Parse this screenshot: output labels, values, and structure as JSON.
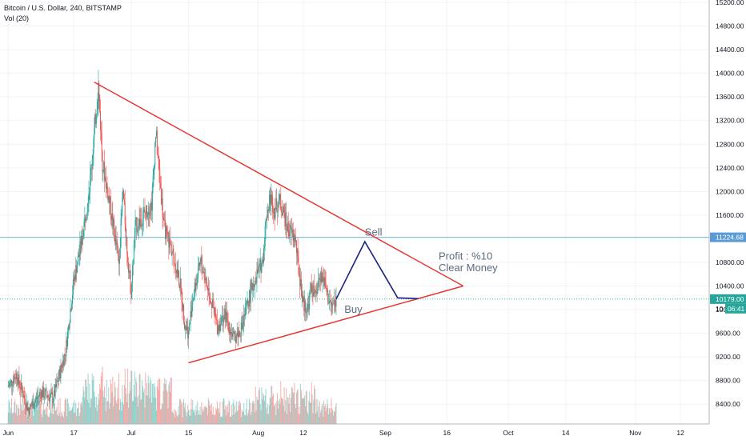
{
  "header": {
    "symbol_line": "Bitcoin / U.S. Dollar, 240, BITSTAMP",
    "volume_line": "Vol (20)"
  },
  "colors": {
    "up": "#26a69a",
    "down": "#ef5350",
    "triangle": "#e53935",
    "path": "#1a237e",
    "hline": "#4fa3c7",
    "price_tag": "#26a69a",
    "hline_tag": "#5b9bd5"
  },
  "chart_data": {
    "type": "candlestick",
    "ylim": [
      8200,
      15200
    ],
    "x_ticks": [
      {
        "label": "Jun",
        "day": 0
      },
      {
        "label": "17",
        "day": 16
      },
      {
        "label": "Jul",
        "day": 30
      },
      {
        "label": "15",
        "day": 44
      },
      {
        "label": "Aug",
        "day": 61
      },
      {
        "label": "12",
        "day": 72
      },
      {
        "label": "Sep",
        "day": 92
      },
      {
        "label": "16",
        "day": 107
      },
      {
        "label": "Oct",
        "day": 122
      },
      {
        "label": "14",
        "day": 136
      },
      {
        "label": "Nov",
        "day": 153
      },
      {
        "label": "12",
        "day": 164
      }
    ],
    "y_ticks": [
      15200,
      14800,
      14400,
      14000,
      13600,
      13200,
      12800,
      12400,
      12000,
      11600,
      11200,
      10800,
      10400,
      10000,
      9600,
      9200,
      8800,
      8400
    ],
    "y_tick_labels": [
      "15200.00",
      "14800.00",
      "14400.00",
      "14000.00",
      "13600.00",
      "13200.00",
      "12800.00",
      "12400.00",
      "12000.00",
      "11600.00",
      "11200.00",
      "10800.00",
      "10400.00",
      "10000.00",
      "9600.00",
      "9200.00",
      "8800.00",
      "8400.00"
    ],
    "price_anchors": [
      [
        0,
        8700
      ],
      [
        2,
        8900
      ],
      [
        5,
        8300
      ],
      [
        8,
        8600
      ],
      [
        11,
        8500
      ],
      [
        14,
        9300
      ],
      [
        16,
        10500
      ],
      [
        18,
        11200
      ],
      [
        20,
        12200
      ],
      [
        22,
        13800
      ],
      [
        23,
        12500
      ],
      [
        25,
        11700
      ],
      [
        27,
        10800
      ],
      [
        28,
        12000
      ],
      [
        29,
        11000
      ],
      [
        30,
        10300
      ],
      [
        31,
        11400
      ],
      [
        33,
        11600
      ],
      [
        35,
        11800
      ],
      [
        36,
        13000
      ],
      [
        37,
        12200
      ],
      [
        38,
        11400
      ],
      [
        40,
        11000
      ],
      [
        42,
        10400
      ],
      [
        43,
        9800
      ],
      [
        44,
        9600
      ],
      [
        45,
        10200
      ],
      [
        47,
        10800
      ],
      [
        49,
        10300
      ],
      [
        51,
        9700
      ],
      [
        53,
        9900
      ],
      [
        55,
        9500
      ],
      [
        57,
        9700
      ],
      [
        58,
        10000
      ],
      [
        60,
        10500
      ],
      [
        62,
        10800
      ],
      [
        63,
        11600
      ],
      [
        64,
        11900
      ],
      [
        65,
        11700
      ],
      [
        66,
        11850
      ],
      [
        67,
        11700
      ],
      [
        68,
        11400
      ],
      [
        69,
        11300
      ],
      [
        70,
        11200
      ],
      [
        71,
        10600
      ],
      [
        72,
        10100
      ],
      [
        73,
        10000
      ],
      [
        74,
        10400
      ],
      [
        75,
        10200
      ],
      [
        76,
        10600
      ],
      [
        77,
        10500
      ],
      [
        78,
        10200
      ],
      [
        79,
        10050
      ],
      [
        80,
        10179
      ]
    ],
    "last_day": 80,
    "current_price": 10179,
    "current_price_label": "10179.00",
    "countdown_label": "06:41",
    "covered_tick_label": "10",
    "hline_price": 11224.68,
    "hline_label": "11224.68",
    "triangle": {
      "upper_start": {
        "day": 21,
        "price": 13850
      },
      "lower_start": {
        "day": 44,
        "price": 9100
      },
      "apex": {
        "day": 111,
        "price": 10400
      }
    },
    "projection": [
      {
        "day": 80,
        "price": 10179
      },
      {
        "day": 87,
        "price": 11150
      },
      {
        "day": 95,
        "price": 10200
      }
    ],
    "annotations": [
      {
        "text": "Sell",
        "day": 87,
        "price": 11250
      },
      {
        "text": "Buy",
        "day": 82,
        "price": 9950
      },
      {
        "text": "Profit : %10",
        "day": 105,
        "price": 10850
      },
      {
        "text": "Clear Money",
        "day": 105,
        "price": 10650
      }
    ]
  }
}
